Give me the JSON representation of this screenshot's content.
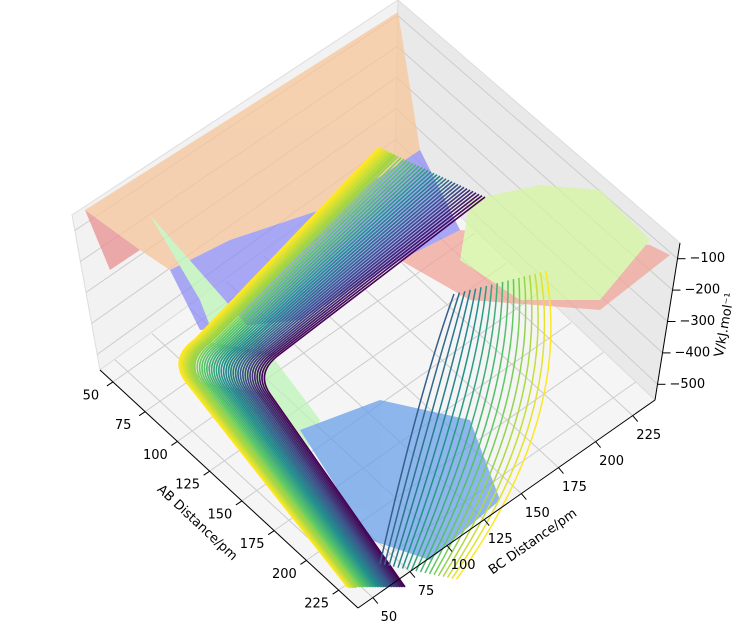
{
  "chart_data": {
    "type": "surface3d",
    "xlabel": "AB Distance/pm",
    "ylabel": "BC Distance/pm",
    "zlabel": "V/kJ.mol⁻¹",
    "xlim": [
      40,
      240
    ],
    "xticks": [
      50,
      75,
      100,
      125,
      150,
      175,
      200,
      225
    ],
    "ylim": [
      40,
      240
    ],
    "yticks": [
      50,
      75,
      100,
      125,
      150,
      175,
      200,
      225
    ],
    "zlim": [
      -550,
      -50
    ],
    "zticks": [
      {
        "value": -100,
        "label": "−100"
      },
      {
        "value": -200,
        "label": "−200"
      },
      {
        "value": -300,
        "label": "−300"
      },
      {
        "value": -400,
        "label": "−400"
      },
      {
        "value": -500,
        "label": "−500"
      }
    ],
    "grid": true
  }
}
